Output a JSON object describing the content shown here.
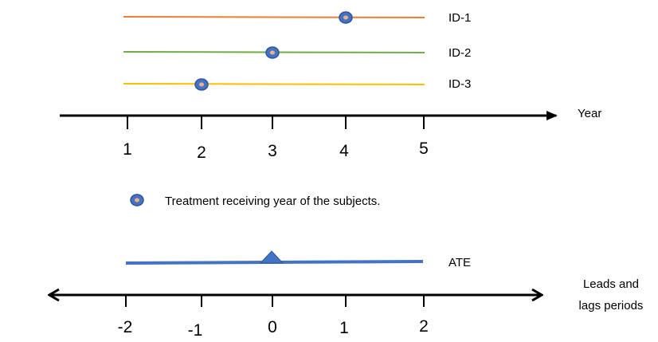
{
  "timelines": [
    {
      "label": "ID-1",
      "color": "#ED7D31",
      "treatment_year": 4
    },
    {
      "label": "ID-2",
      "color": "#70AD47",
      "treatment_year": 3
    },
    {
      "label": "ID-3",
      "color": "#FFC000",
      "treatment_year": 2
    }
  ],
  "year_axis": {
    "label": "Year",
    "ticks": [
      "1",
      "2",
      "3",
      "4",
      "5"
    ]
  },
  "legend": {
    "text": "Treatment receiving year of the subjects.",
    "marker_icon": "ring-marker-icon"
  },
  "ate": {
    "label": "ATE",
    "color": "#4472C4",
    "event_period": 0
  },
  "period_axis": {
    "label_line1": "Leads and",
    "label_line2": "lags periods",
    "ticks": [
      "-2",
      "-1",
      "0",
      "1",
      "2"
    ]
  },
  "colors": {
    "marker_fill": "#4472C4",
    "marker_stroke": "#2F5597",
    "marker_center": "#F4B183",
    "axis": "#000000"
  }
}
